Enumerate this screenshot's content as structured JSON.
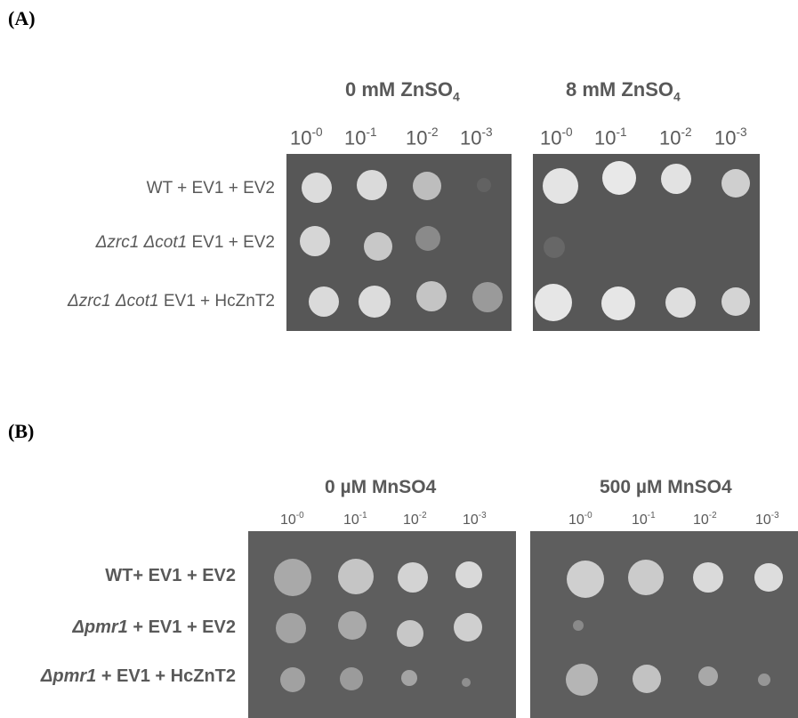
{
  "panel_a": {
    "label": "(A)",
    "conditions": [
      {
        "title": "0 mM ZnSO",
        "title_sub": "4",
        "dilutions": [
          {
            "base": "10",
            "exp": "-0"
          },
          {
            "base": "10",
            "exp": "-1"
          },
          {
            "base": "10",
            "exp": "-2"
          },
          {
            "base": "10",
            "exp": "-3"
          }
        ]
      },
      {
        "title": "8 mM ZnSO",
        "title_sub": "4",
        "dilutions": [
          {
            "base": "10",
            "exp": "-0"
          },
          {
            "base": "10",
            "exp": "-1"
          },
          {
            "base": "10",
            "exp": "-2"
          },
          {
            "base": "10",
            "exp": "-3"
          }
        ]
      }
    ],
    "strains": [
      {
        "italic": "",
        "rest": "WT + EV1 + EV2"
      },
      {
        "italic": "Δzrc1 Δcot1",
        "rest": " EV1 + EV2"
      },
      {
        "italic": "Δzrc1 Δcot1",
        "rest": " EV1 + HcZnT2"
      }
    ]
  },
  "panel_b": {
    "label": "(B)",
    "conditions": [
      {
        "title": "0 µM MnSO4",
        "dilutions": [
          {
            "base": "10",
            "exp": "-0"
          },
          {
            "base": "10",
            "exp": "-1"
          },
          {
            "base": "10",
            "exp": "-2"
          },
          {
            "base": "10",
            "exp": "-3"
          }
        ]
      },
      {
        "title": "500 µM MnSO4",
        "dilutions": [
          {
            "base": "10",
            "exp": "-0"
          },
          {
            "base": "10",
            "exp": "-1"
          },
          {
            "base": "10",
            "exp": "-2"
          },
          {
            "base": "10",
            "exp": "-3"
          }
        ]
      }
    ],
    "strains": [
      {
        "italic": "",
        "rest": "WT+ EV1 + EV2"
      },
      {
        "italic": "Δpmr1",
        "rest": " + EV1 + EV2"
      },
      {
        "italic": "Δpmr1",
        "rest": " + EV1 + HcZnT2"
      }
    ]
  },
  "colors": {
    "plate": "#575757",
    "colony": "#d9d9d9",
    "text": "#595959",
    "letter": "#000000"
  }
}
